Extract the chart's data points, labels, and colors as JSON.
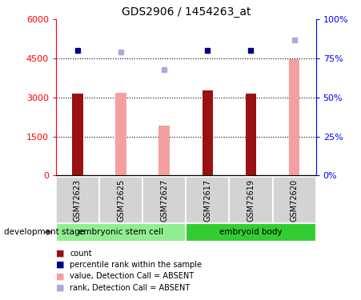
{
  "title": "GDS2906 / 1454263_at",
  "samples": [
    "GSM72623",
    "GSM72625",
    "GSM72627",
    "GSM72617",
    "GSM72619",
    "GSM72620"
  ],
  "group_labels": [
    "embryonic stem cell",
    "embryoid body"
  ],
  "group_colors": [
    "#90EE90",
    "#32CD32"
  ],
  "bar_values": [
    3150,
    null,
    null,
    3270,
    3150,
    null
  ],
  "bar_absent_values": [
    null,
    3180,
    1920,
    null,
    null,
    4480
  ],
  "bar_color": "#9B1010",
  "bar_absent_color": "#F4A0A0",
  "rank_values": [
    80,
    null,
    null,
    80,
    80,
    null
  ],
  "rank_absent_values": [
    null,
    79,
    68,
    null,
    null,
    87
  ],
  "rank_color": "#00008B",
  "rank_absent_color": "#AAAADD",
  "ylim_left": [
    0,
    6000
  ],
  "ylim_right": [
    0,
    100
  ],
  "yticks_left": [
    0,
    1500,
    3000,
    4500,
    6000
  ],
  "ytick_labels_left": [
    "0",
    "1500",
    "3000",
    "4500",
    "6000"
  ],
  "yticks_right": [
    0,
    25,
    50,
    75,
    100
  ],
  "ytick_labels_right": [
    "0%",
    "25%",
    "50%",
    "75%",
    "100%"
  ],
  "grid_values": [
    1500,
    3000,
    4500
  ],
  "label_text": "development stage",
  "bar_width": 0.25,
  "marker_size": 5,
  "legend_items": [
    {
      "color": "#9B1010",
      "label": "count"
    },
    {
      "color": "#00008B",
      "label": "percentile rank within the sample"
    },
    {
      "color": "#F4A0A0",
      "label": "value, Detection Call = ABSENT"
    },
    {
      "color": "#AAAADD",
      "label": "rank, Detection Call = ABSENT"
    }
  ]
}
